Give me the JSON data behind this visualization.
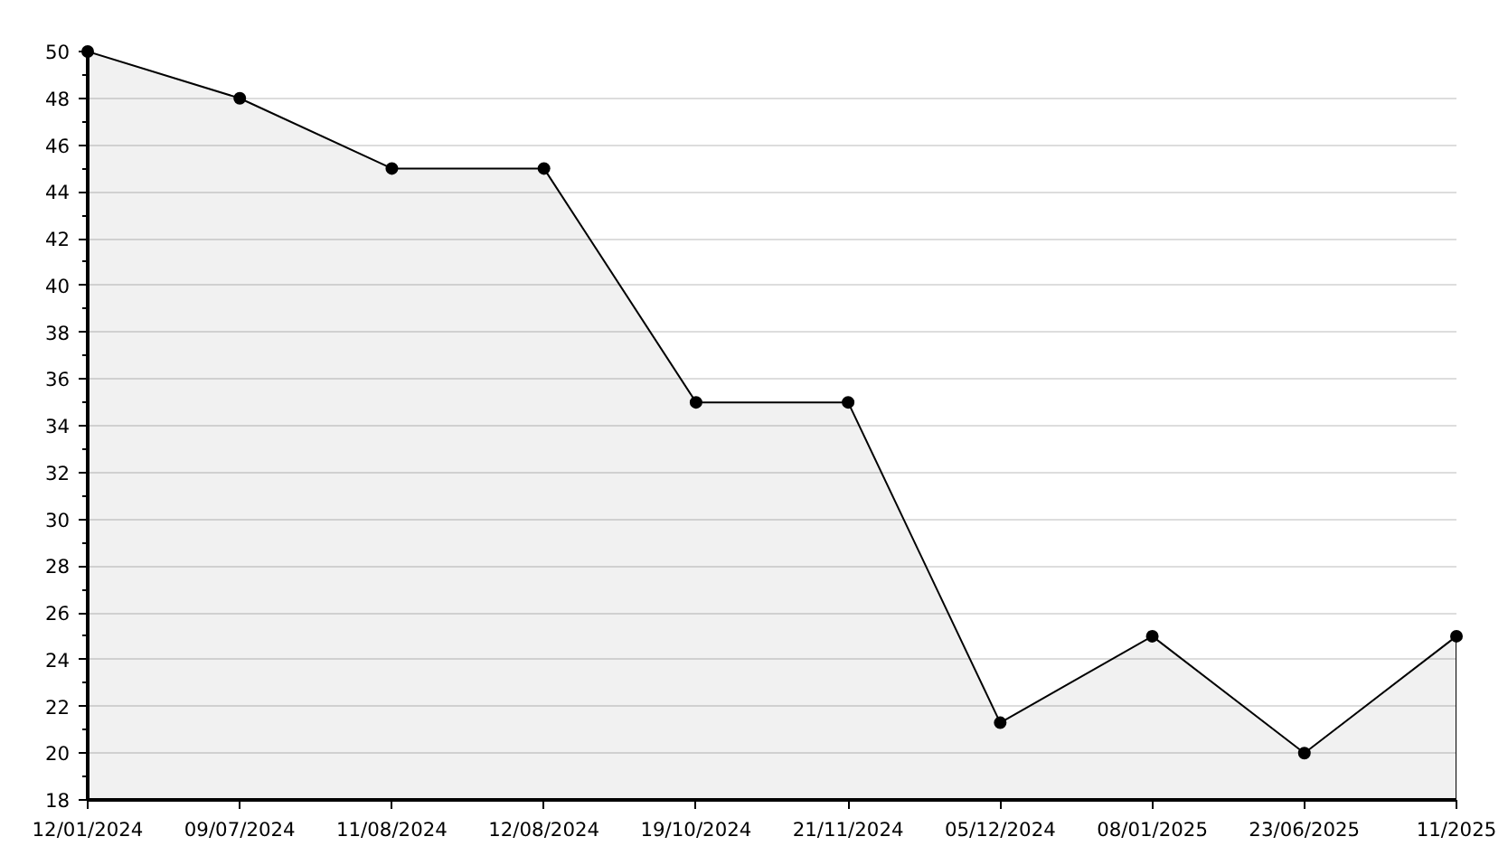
{
  "chart_data": {
    "type": "area",
    "categories": [
      "12/01/2024",
      "09/07/2024",
      "11/08/2024",
      "12/08/2024",
      "19/10/2024",
      "21/11/2024",
      "05/12/2024",
      "08/01/2025",
      "23/06/2025",
      "11/2025"
    ],
    "values": [
      50,
      48,
      45,
      45,
      35,
      35,
      21.3,
      25,
      20,
      25
    ],
    "color": "#000000",
    "ylim": [
      18,
      50
    ],
    "yticks": [
      18,
      20,
      22,
      24,
      26,
      28,
      30,
      32,
      34,
      36,
      38,
      40,
      42,
      44,
      46,
      48,
      50
    ],
    "grid": "y",
    "marker": "circle"
  }
}
